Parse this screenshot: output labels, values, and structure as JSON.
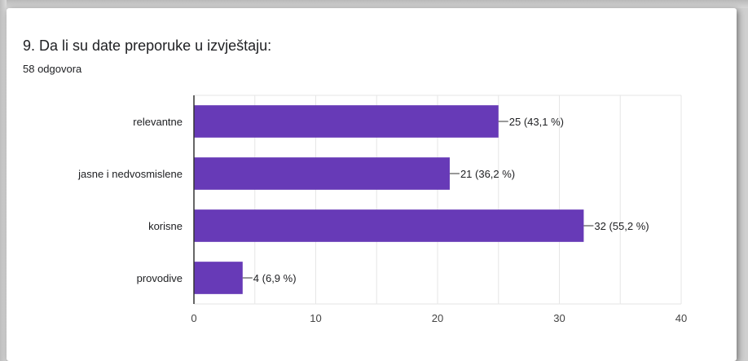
{
  "question": {
    "title": "9. Da li su date preporuke u izvještaju:",
    "response_count": "58 odgovora"
  },
  "colors": {
    "bar": "#673ab7",
    "grid": "#e6e6e6",
    "axis": "#333333",
    "text": "#202124"
  },
  "chart_data": {
    "type": "bar",
    "orientation": "horizontal",
    "categories": [
      "relevantne",
      "jasne i nedvosmislene",
      "korisne",
      "provodive"
    ],
    "values": [
      25,
      21,
      32,
      4
    ],
    "data_labels": [
      "25 (43,1 %)",
      "21 (36,2 %)",
      "32 (55,2 %)",
      "4 (6,9 %)"
    ],
    "xlim": [
      0,
      40
    ],
    "xticks": [
      0,
      10,
      20,
      30,
      40
    ],
    "grid": true,
    "legend": "none"
  }
}
